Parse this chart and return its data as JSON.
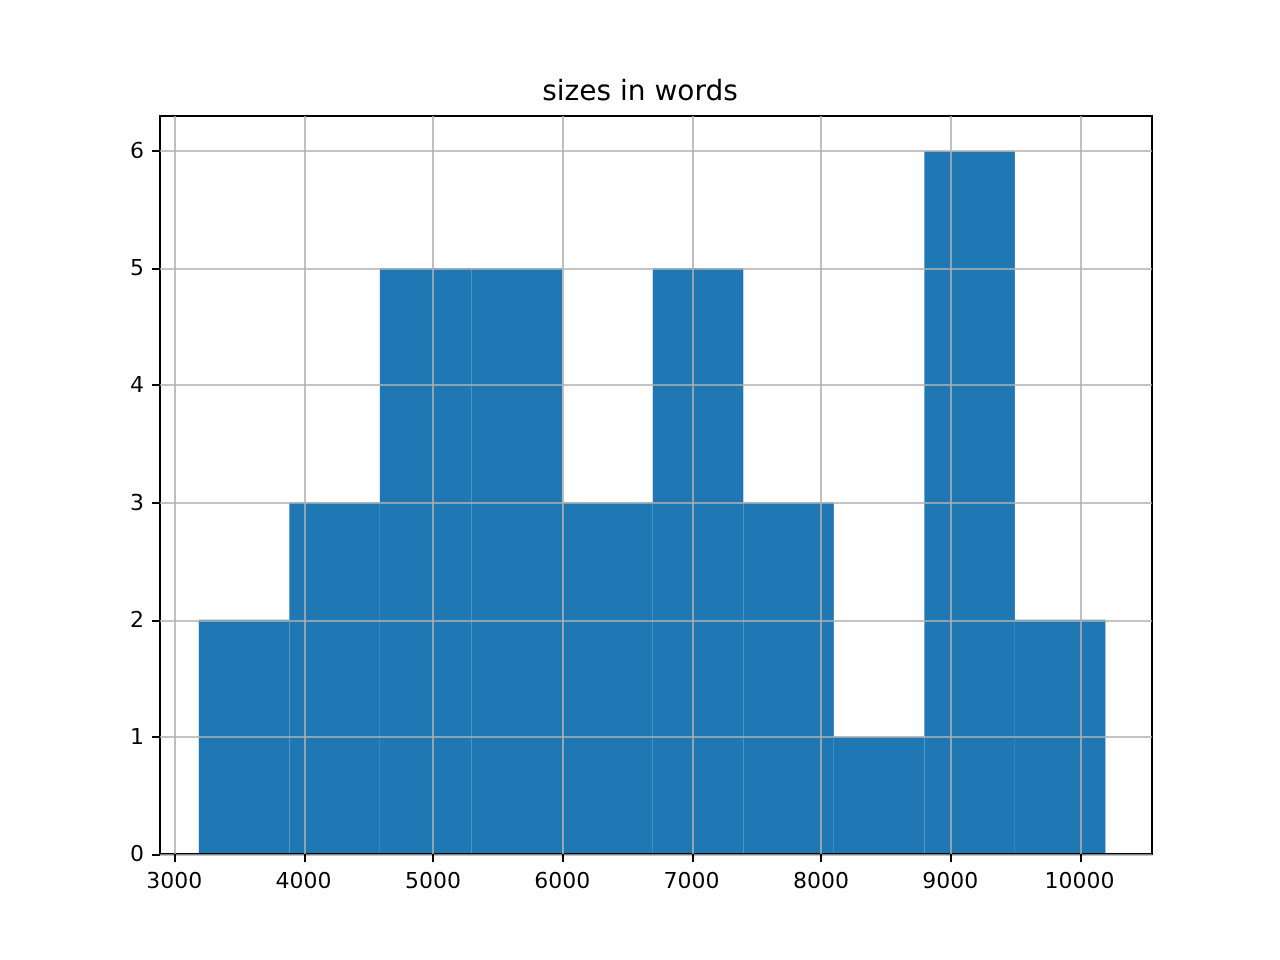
{
  "chart_data": {
    "type": "histogram",
    "title": "sizes in words",
    "bins": [
      3190,
      3890,
      4590,
      5300,
      6000,
      6700,
      7400,
      8100,
      8800,
      9500,
      10200
    ],
    "values": [
      2,
      3,
      5,
      5,
      3,
      5,
      3,
      1,
      6,
      2
    ],
    "color": "#1f77b4",
    "xlim": [
      2890,
      10560
    ],
    "xticks": [
      3000,
      4000,
      5000,
      6000,
      7000,
      8000,
      9000,
      10000
    ],
    "ylim": [
      0,
      6.3
    ],
    "yticks": [
      0,
      1,
      2,
      3,
      4,
      5,
      6
    ],
    "grid": true
  }
}
